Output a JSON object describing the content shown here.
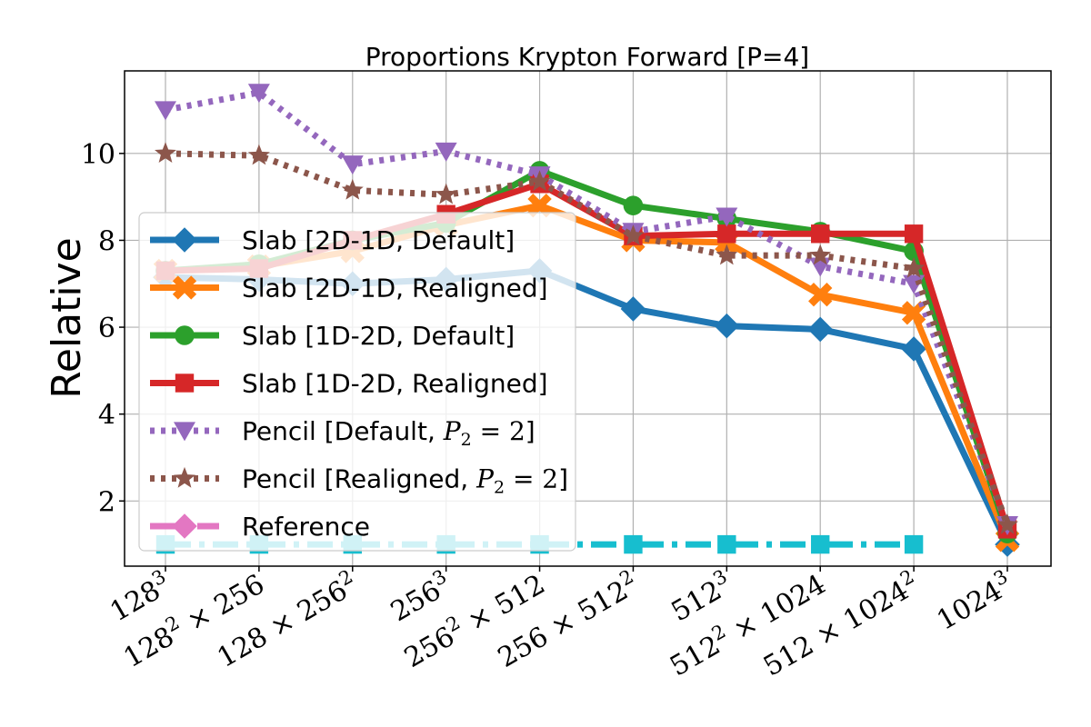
{
  "chart_data": {
    "type": "line",
    "title": "Proportions Krypton Forward [P=4]",
    "xlabel": "",
    "ylabel": "Relative",
    "categories": [
      "128^3",
      "128^2 × 256",
      "128 × 256^2",
      "256^3",
      "256^2 × 512",
      "256 × 512^2",
      "512^3",
      "512^2 × 1024",
      "512 × 1024^2",
      "1024^3"
    ],
    "category_labels": [
      {
        "base": "128",
        "sup": "3",
        "rest": ""
      },
      {
        "base": "128",
        "sup": "2",
        "rest": " × 256"
      },
      {
        "base": "128 × 256",
        "sup": "2",
        "rest": ""
      },
      {
        "base": "256",
        "sup": "3",
        "rest": ""
      },
      {
        "base": "256",
        "sup": "2",
        "rest": " × 512"
      },
      {
        "base": "256 × 512",
        "sup": "2",
        "rest": ""
      },
      {
        "base": "512",
        "sup": "3",
        "rest": ""
      },
      {
        "base": "512",
        "sup": "2",
        "rest": " × 1024"
      },
      {
        "base": "512 × 1024",
        "sup": "2",
        "rest": ""
      },
      {
        "base": "1024",
        "sup": "3",
        "rest": ""
      }
    ],
    "yticks": [
      2,
      4,
      6,
      8,
      10
    ],
    "ylim": [
      0.5,
      11.9
    ],
    "grid": true,
    "legend_position": "center-left",
    "series": [
      {
        "name": "Slab [2D-1D, Default]",
        "color": "#1f77b4",
        "marker": "diamond",
        "dash": "solid",
        "values": [
          7.15,
          7.1,
          7.0,
          7.1,
          7.3,
          6.42,
          6.03,
          5.95,
          5.5,
          1.0
        ]
      },
      {
        "name": "Slab [2D-1D, Realigned]",
        "color": "#ff7f0e",
        "marker": "x",
        "dash": "solid",
        "values": [
          7.3,
          7.4,
          7.75,
          8.35,
          8.8,
          8.0,
          7.95,
          6.75,
          6.33,
          1.1
        ]
      },
      {
        "name": "Slab [1D-2D, Default]",
        "color": "#2ca02c",
        "marker": "circle",
        "dash": "solid",
        "values": [
          7.3,
          7.45,
          8.0,
          8.4,
          9.6,
          8.8,
          8.5,
          8.2,
          7.75,
          1.25
        ]
      },
      {
        "name": "Slab [1D-2D, Realigned]",
        "color": "#d62728",
        "marker": "square",
        "dash": "solid",
        "values": [
          7.3,
          7.35,
          8.0,
          8.6,
          9.3,
          8.1,
          8.15,
          8.15,
          8.15,
          1.35
        ]
      },
      {
        "name": "Pencil [Default, ",
        "name_math": "P2 = 2",
        "name_end": "]",
        "color": "#9467bd",
        "marker": "triangle-down",
        "dash": "dotted",
        "values": [
          11.0,
          11.4,
          9.75,
          10.05,
          9.5,
          8.2,
          8.55,
          7.4,
          7.0,
          1.45
        ]
      },
      {
        "name": "Pencil [Realigned, ",
        "name_math": "P2 = 2",
        "name_end": "]",
        "color": "#8c564b",
        "marker": "star",
        "dash": "dotted",
        "values": [
          10.0,
          9.95,
          9.15,
          9.05,
          9.35,
          8.1,
          7.65,
          7.65,
          7.35,
          1.45
        ]
      },
      {
        "name": "Reference",
        "color": "#e377c2",
        "marker": "diamond",
        "dash": "dashdot",
        "values": [
          null,
          null,
          null,
          null,
          null,
          null,
          null,
          null,
          null,
          null
        ]
      },
      {
        "name": "",
        "color": "#17becf",
        "marker": "square",
        "dash": "dashdot",
        "values": [
          1.0,
          1.0,
          1.0,
          1.0,
          1.0,
          1.0,
          1.0,
          1.0,
          1.0,
          null
        ]
      }
    ]
  },
  "legend_style": {
    "background": "#ffffff",
    "opacity": 0.8,
    "border": "#cccccc"
  }
}
